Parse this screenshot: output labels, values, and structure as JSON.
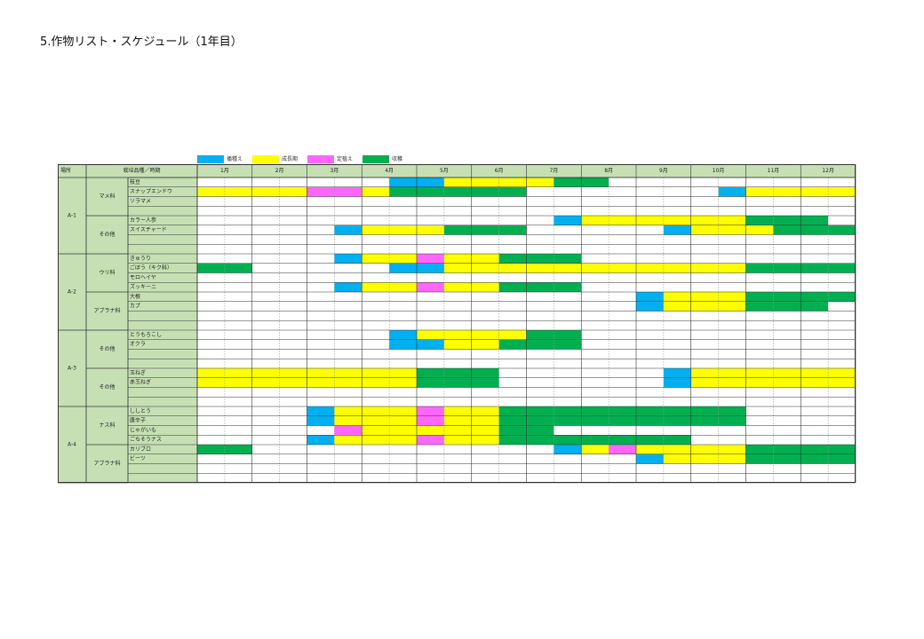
{
  "document": {
    "title": "5.作物リスト・スケジュール（1年目）"
  },
  "colors": {
    "seeding": "#00b0f0",
    "growing": "#ffff00",
    "planting": "#ff66ff",
    "harvest": "#00b050",
    "header_bg": "#c6e0b4",
    "grid_line": "#333333"
  },
  "legend": [
    {
      "name": "seeding",
      "label": "播種え",
      "color": "#00b0f0"
    },
    {
      "name": "growing",
      "label": "成長期",
      "color": "#ffff00"
    },
    {
      "name": "planting",
      "label": "定植え",
      "color": "#ff66ff"
    },
    {
      "name": "harvest",
      "label": "収穫",
      "color": "#00b050"
    }
  ],
  "table": {
    "header": {
      "area": "場所",
      "category": "栽培品種／時期"
    },
    "months": [
      "1月",
      "2月",
      "3月",
      "4月",
      "5月",
      "6月",
      "7月",
      "8月",
      "9月",
      "10月",
      "11月",
      "12月"
    ],
    "areas": [
      {
        "name": "A-1",
        "groups": [
          {
            "name": "マメ科",
            "rows": [
              {
                "crop": "枝豆",
                "bars": [
                  {
                    "s": 7,
                    "e": 9,
                    "c": "seeding"
                  },
                  {
                    "s": 9,
                    "e": 13,
                    "c": "growing"
                  },
                  {
                    "s": 13,
                    "e": 15,
                    "c": "harvest"
                  }
                ]
              },
              {
                "crop": "スナップエンドウ",
                "bars": [
                  {
                    "s": 0,
                    "e": 4,
                    "c": "growing"
                  },
                  {
                    "s": 4,
                    "e": 6,
                    "c": "planting"
                  },
                  {
                    "s": 6,
                    "e": 7,
                    "c": "growing"
                  },
                  {
                    "s": 7,
                    "e": 12,
                    "c": "harvest"
                  },
                  {
                    "s": 19,
                    "e": 20,
                    "c": "seeding"
                  },
                  {
                    "s": 20,
                    "e": 24,
                    "c": "growing"
                  }
                ]
              },
              {
                "crop": "ソラマメ",
                "bars": []
              },
              {
                "crop": "",
                "bars": []
              }
            ]
          },
          {
            "name": "その他",
            "rows": [
              {
                "crop": "カラー人参",
                "bars": [
                  {
                    "s": 13,
                    "e": 14,
                    "c": "seeding"
                  },
                  {
                    "s": 14,
                    "e": 20,
                    "c": "growing"
                  },
                  {
                    "s": 20,
                    "e": 23,
                    "c": "harvest"
                  }
                ]
              },
              {
                "crop": "スイスチャード",
                "bars": [
                  {
                    "s": 5,
                    "e": 6,
                    "c": "seeding"
                  },
                  {
                    "s": 6,
                    "e": 9,
                    "c": "growing"
                  },
                  {
                    "s": 9,
                    "e": 12,
                    "c": "harvest"
                  },
                  {
                    "s": 17,
                    "e": 18,
                    "c": "seeding"
                  },
                  {
                    "s": 18,
                    "e": 21,
                    "c": "growing"
                  },
                  {
                    "s": 21,
                    "e": 24,
                    "c": "harvest"
                  }
                ]
              },
              {
                "crop": "",
                "bars": []
              },
              {
                "crop": "",
                "bars": []
              }
            ]
          }
        ]
      },
      {
        "name": "A-2",
        "groups": [
          {
            "name": "ウリ科",
            "rows": [
              {
                "crop": "きゅうり",
                "bars": [
                  {
                    "s": 5,
                    "e": 6,
                    "c": "seeding"
                  },
                  {
                    "s": 6,
                    "e": 8,
                    "c": "growing"
                  },
                  {
                    "s": 8,
                    "e": 9,
                    "c": "planting"
                  },
                  {
                    "s": 9,
                    "e": 11,
                    "c": "growing"
                  },
                  {
                    "s": 11,
                    "e": 14,
                    "c": "harvest"
                  }
                ]
              },
              {
                "crop": "ごぼう（キク科）",
                "bars": [
                  {
                    "s": 0,
                    "e": 2,
                    "c": "harvest"
                  },
                  {
                    "s": 7,
                    "e": 9,
                    "c": "seeding"
                  },
                  {
                    "s": 9,
                    "e": 20,
                    "c": "growing"
                  },
                  {
                    "s": 20,
                    "e": 24,
                    "c": "harvest"
                  }
                ]
              },
              {
                "crop": "モロヘイヤ",
                "bars": []
              },
              {
                "crop": "ズッキーニ",
                "bars": [
                  {
                    "s": 5,
                    "e": 6,
                    "c": "seeding"
                  },
                  {
                    "s": 6,
                    "e": 8,
                    "c": "growing"
                  },
                  {
                    "s": 8,
                    "e": 9,
                    "c": "planting"
                  },
                  {
                    "s": 9,
                    "e": 11,
                    "c": "growing"
                  },
                  {
                    "s": 11,
                    "e": 14,
                    "c": "harvest"
                  }
                ]
              }
            ]
          },
          {
            "name": "アブラナ科",
            "rows": [
              {
                "crop": "大根",
                "bars": [
                  {
                    "s": 16,
                    "e": 17,
                    "c": "seeding"
                  },
                  {
                    "s": 17,
                    "e": 20,
                    "c": "growing"
                  },
                  {
                    "s": 20,
                    "e": 24,
                    "c": "harvest"
                  }
                ]
              },
              {
                "crop": "カブ",
                "bars": [
                  {
                    "s": 16,
                    "e": 17,
                    "c": "seeding"
                  },
                  {
                    "s": 17,
                    "e": 20,
                    "c": "growing"
                  },
                  {
                    "s": 20,
                    "e": 23,
                    "c": "harvest"
                  }
                ]
              },
              {
                "crop": "",
                "bars": []
              },
              {
                "crop": "",
                "bars": []
              }
            ]
          }
        ]
      },
      {
        "name": "A-3",
        "groups": [
          {
            "name": "その他",
            "rows": [
              {
                "crop": "とうもろこし",
                "bars": [
                  {
                    "s": 7,
                    "e": 8,
                    "c": "seeding"
                  },
                  {
                    "s": 8,
                    "e": 12,
                    "c": "growing"
                  },
                  {
                    "s": 12,
                    "e": 14,
                    "c": "harvest"
                  }
                ]
              },
              {
                "crop": "オクラ",
                "bars": [
                  {
                    "s": 7,
                    "e": 9,
                    "c": "seeding"
                  },
                  {
                    "s": 9,
                    "e": 11,
                    "c": "growing"
                  },
                  {
                    "s": 11,
                    "e": 14,
                    "c": "harvest"
                  }
                ]
              },
              {
                "crop": "",
                "bars": []
              },
              {
                "crop": "",
                "bars": []
              }
            ]
          },
          {
            "name": "その他",
            "rows": [
              {
                "crop": "玉ねぎ",
                "bars": [
                  {
                    "s": 0,
                    "e": 8,
                    "c": "growing"
                  },
                  {
                    "s": 8,
                    "e": 11,
                    "c": "harvest"
                  },
                  {
                    "s": 17,
                    "e": 18,
                    "c": "seeding"
                  },
                  {
                    "s": 18,
                    "e": 24,
                    "c": "growing"
                  }
                ]
              },
              {
                "crop": "赤玉ねぎ",
                "bars": [
                  {
                    "s": 0,
                    "e": 8,
                    "c": "growing"
                  },
                  {
                    "s": 8,
                    "e": 11,
                    "c": "harvest"
                  },
                  {
                    "s": 17,
                    "e": 18,
                    "c": "seeding"
                  },
                  {
                    "s": 18,
                    "e": 24,
                    "c": "growing"
                  }
                ]
              },
              {
                "crop": "",
                "bars": []
              },
              {
                "crop": "",
                "bars": []
              }
            ]
          }
        ]
      },
      {
        "name": "A-4",
        "groups": [
          {
            "name": "ナス科",
            "rows": [
              {
                "crop": "ししとう",
                "bars": [
                  {
                    "s": 4,
                    "e": 5,
                    "c": "seeding"
                  },
                  {
                    "s": 5,
                    "e": 8,
                    "c": "growing"
                  },
                  {
                    "s": 8,
                    "e": 9,
                    "c": "planting"
                  },
                  {
                    "s": 9,
                    "e": 11,
                    "c": "growing"
                  },
                  {
                    "s": 11,
                    "e": 20,
                    "c": "harvest"
                  }
                ]
              },
              {
                "crop": "唐辛子",
                "bars": [
                  {
                    "s": 4,
                    "e": 5,
                    "c": "seeding"
                  },
                  {
                    "s": 5,
                    "e": 8,
                    "c": "growing"
                  },
                  {
                    "s": 8,
                    "e": 9,
                    "c": "planting"
                  },
                  {
                    "s": 9,
                    "e": 11,
                    "c": "growing"
                  },
                  {
                    "s": 11,
                    "e": 20,
                    "c": "harvest"
                  }
                ]
              },
              {
                "crop": "じゃがいも",
                "bars": [
                  {
                    "s": 5,
                    "e": 6,
                    "c": "planting"
                  },
                  {
                    "s": 6,
                    "e": 11,
                    "c": "growing"
                  },
                  {
                    "s": 11,
                    "e": 13,
                    "c": "harvest"
                  }
                ]
              },
              {
                "crop": "ごちそうナス",
                "bars": [
                  {
                    "s": 4,
                    "e": 5,
                    "c": "seeding"
                  },
                  {
                    "s": 5,
                    "e": 8,
                    "c": "growing"
                  },
                  {
                    "s": 8,
                    "e": 9,
                    "c": "planting"
                  },
                  {
                    "s": 9,
                    "e": 11,
                    "c": "growing"
                  },
                  {
                    "s": 11,
                    "e": 18,
                    "c": "harvest"
                  }
                ]
              }
            ]
          },
          {
            "name": "アブラナ科",
            "rows": [
              {
                "crop": "カリブロ",
                "bars": [
                  {
                    "s": 0,
                    "e": 2,
                    "c": "harvest"
                  },
                  {
                    "s": 13,
                    "e": 14,
                    "c": "seeding"
                  },
                  {
                    "s": 14,
                    "e": 15,
                    "c": "growing"
                  },
                  {
                    "s": 15,
                    "e": 16,
                    "c": "planting"
                  },
                  {
                    "s": 16,
                    "e": 20,
                    "c": "growing"
                  },
                  {
                    "s": 20,
                    "e": 24,
                    "c": "harvest"
                  }
                ]
              },
              {
                "crop": "ビーツ",
                "bars": [
                  {
                    "s": 16,
                    "e": 17,
                    "c": "seeding"
                  },
                  {
                    "s": 17,
                    "e": 20,
                    "c": "growing"
                  },
                  {
                    "s": 20,
                    "e": 24,
                    "c": "harvest"
                  }
                ]
              },
              {
                "crop": "",
                "bars": []
              },
              {
                "crop": "",
                "bars": []
              }
            ]
          }
        ]
      }
    ]
  }
}
